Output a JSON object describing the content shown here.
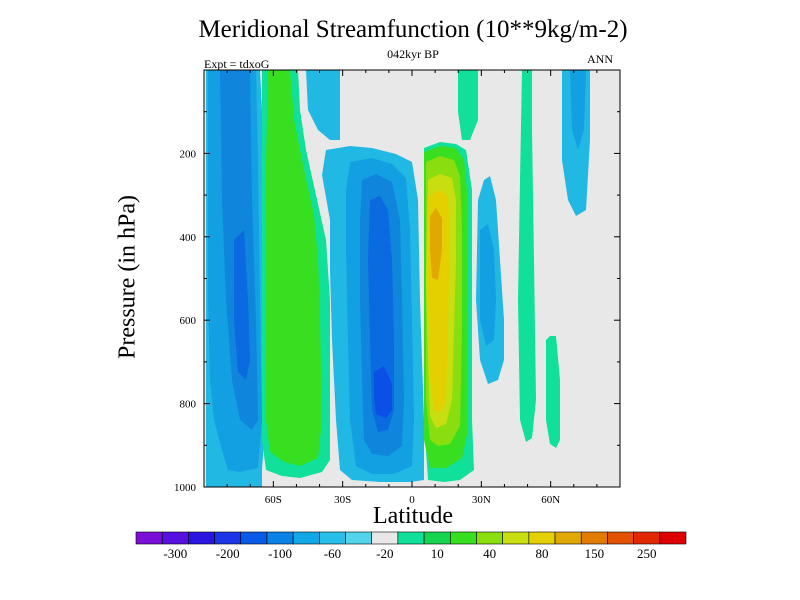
{
  "chart_data": {
    "type": "heatmap",
    "title": "Meridional Streamfunction (10**9kg/m-2)",
    "subtitle": "042kyr BP",
    "left_string": "Expt = tdxoG",
    "right_string": "ANN",
    "xlabel": "Latitude",
    "ylabel": "Pressure (in hPa)",
    "x_tick_labels": [
      "60S",
      "30S",
      "0",
      "30N",
      "60N"
    ],
    "x_tick_values": [
      -60,
      -30,
      0,
      30,
      60
    ],
    "xlim": [
      -90,
      90
    ],
    "y_tick_labels": [
      "200",
      "400",
      "600",
      "800",
      "1000"
    ],
    "y_tick_values": [
      200,
      400,
      600,
      800,
      1000
    ],
    "ylim": [
      0,
      1000
    ],
    "y_inverted": true,
    "colorbar": {
      "labels": [
        "-300",
        "-200",
        "-100",
        "-60",
        "-20",
        "10",
        "40",
        "80",
        "150",
        "250"
      ],
      "label_colors": [
        "#7a10d8",
        "#5810e0",
        "#2a14e0",
        "#1c34e8",
        "#0a5ae8",
        "#0a82e6",
        "#10a8e6",
        "#28c0ea",
        "#52d4ea",
        "#e8e8e8",
        "#10e09a",
        "#18d450",
        "#38de20",
        "#8ade10",
        "#c8de10",
        "#e4d000",
        "#e0a800",
        "#e27c00",
        "#e25000",
        "#e22800",
        "#de0000"
      ]
    },
    "contour_fill_colors": {
      "background": "#e8e8e8",
      "neg_lt_m20": "#22b8e4",
      "neg_lt_m40": "#12a0e2",
      "neg_lt_m60": "#0f86dc",
      "neg_lt_m80": "#0a6ae0",
      "neg_lt_m100": "#0a50e4",
      "pos_gt_10": "#10e09a",
      "pos_gt_20": "#38de20",
      "pos_gt_40": "#8ade10",
      "pos_gt_60": "#c8de10",
      "pos_gt_80": "#e4d000",
      "pos_gt_100": "#e0a800"
    }
  }
}
